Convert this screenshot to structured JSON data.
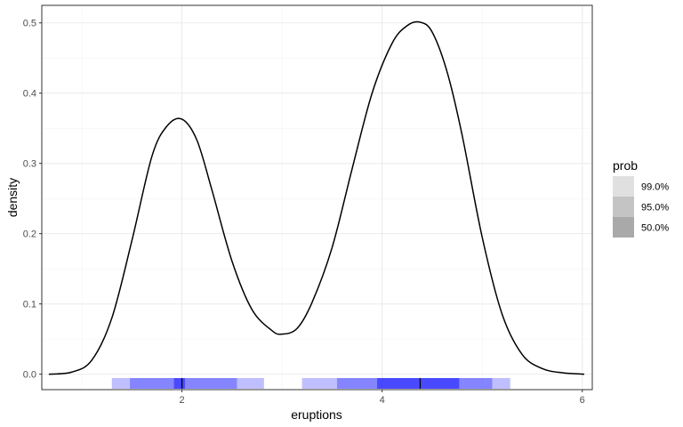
{
  "chart_data": {
    "type": "line",
    "title": "",
    "xlabel": "eruptions",
    "ylabel": "density",
    "xlim": [
      0.6,
      6.1
    ],
    "ylim": [
      -0.022,
      0.525
    ],
    "x_ticks": [
      2,
      4,
      6
    ],
    "x_tick_labels": [
      "2",
      "4",
      "6"
    ],
    "y_ticks": [
      0.0,
      0.1,
      0.2,
      0.3,
      0.4,
      0.5
    ],
    "y_tick_labels": [
      "0.0",
      "0.1",
      "0.2",
      "0.3",
      "0.4",
      "0.5"
    ],
    "grid": true,
    "legend_position": "right",
    "density_curve": {
      "color": "#000000",
      "x": [
        0.67,
        0.9,
        1.1,
        1.3,
        1.5,
        1.7,
        1.85,
        2.0,
        2.15,
        2.3,
        2.5,
        2.7,
        2.9,
        3.0,
        3.15,
        3.3,
        3.5,
        3.7,
        3.9,
        4.1,
        4.25,
        4.38,
        4.5,
        4.65,
        4.8,
        5.0,
        5.2,
        5.4,
        5.6,
        5.8,
        6.02
      ],
      "y": [
        0.0,
        0.003,
        0.02,
        0.08,
        0.19,
        0.31,
        0.353,
        0.363,
        0.333,
        0.262,
        0.161,
        0.092,
        0.062,
        0.057,
        0.065,
        0.102,
        0.18,
        0.292,
        0.4,
        0.471,
        0.496,
        0.501,
        0.487,
        0.43,
        0.34,
        0.195,
        0.085,
        0.028,
        0.008,
        0.002,
        0.0
      ]
    },
    "interval_band": {
      "color": "#0000ff",
      "modes": [
        2.0,
        4.38
      ],
      "intervals": [
        {
          "prob": "99.0%",
          "opacity": 0.25,
          "ranges": [
            [
              1.3,
              2.82
            ],
            [
              3.2,
              5.28
            ]
          ]
        },
        {
          "prob": "95.0%",
          "opacity": 0.3,
          "ranges": [
            [
              1.48,
              2.55
            ],
            [
              3.55,
              5.1
            ]
          ]
        },
        {
          "prob": "50.0%",
          "opacity": 0.45,
          "ranges": [
            [
              1.92,
              2.03
            ],
            [
              3.95,
              4.77
            ]
          ]
        }
      ]
    },
    "legend": {
      "title": "prob",
      "entries": [
        {
          "label": "99.0%",
          "color": "#e0e0e0"
        },
        {
          "label": "95.0%",
          "color": "#c4c4c4"
        },
        {
          "label": "50.0%",
          "color": "#a9a9a9"
        }
      ]
    }
  }
}
